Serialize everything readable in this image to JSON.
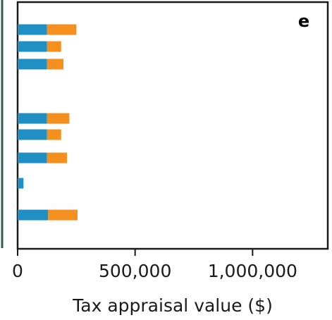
{
  "chart_data": {
    "type": "bar",
    "orientation": "horizontal",
    "stacked": true,
    "panel_label": "e",
    "xlabel": "Tax appraisal value ($)",
    "ylabel": "",
    "xlim": [
      0,
      1320000
    ],
    "xticks": [
      {
        "value": 0,
        "label": "0"
      },
      {
        "value": 500000,
        "label": "500,000"
      },
      {
        "value": 1000000,
        "label": "1,000,000"
      }
    ],
    "grid": false,
    "legend": "none",
    "rows": [
      {
        "slot": 0,
        "values": [
          125000,
          125000
        ]
      },
      {
        "slot": 1,
        "values": [
          125000,
          60000
        ]
      },
      {
        "slot": 2,
        "values": [
          125000,
          70000
        ]
      },
      {
        "slot": 3,
        "values": [
          null,
          null
        ]
      },
      {
        "slot": 4,
        "values": [
          125000,
          95000
        ]
      },
      {
        "slot": 5,
        "values": [
          125000,
          60000
        ]
      },
      {
        "slot": 6,
        "values": [
          125000,
          85000
        ]
      },
      {
        "slot": 7,
        "values": [
          25000,
          0
        ]
      },
      {
        "slot": 8,
        "values": [
          130000,
          125000
        ]
      }
    ],
    "series": [
      {
        "color": "#1f8fc4"
      },
      {
        "color": "#f5901e"
      }
    ],
    "colors": {
      "left_panel_edge": "#2f5a5a",
      "axis": "#1a1a1a"
    }
  }
}
